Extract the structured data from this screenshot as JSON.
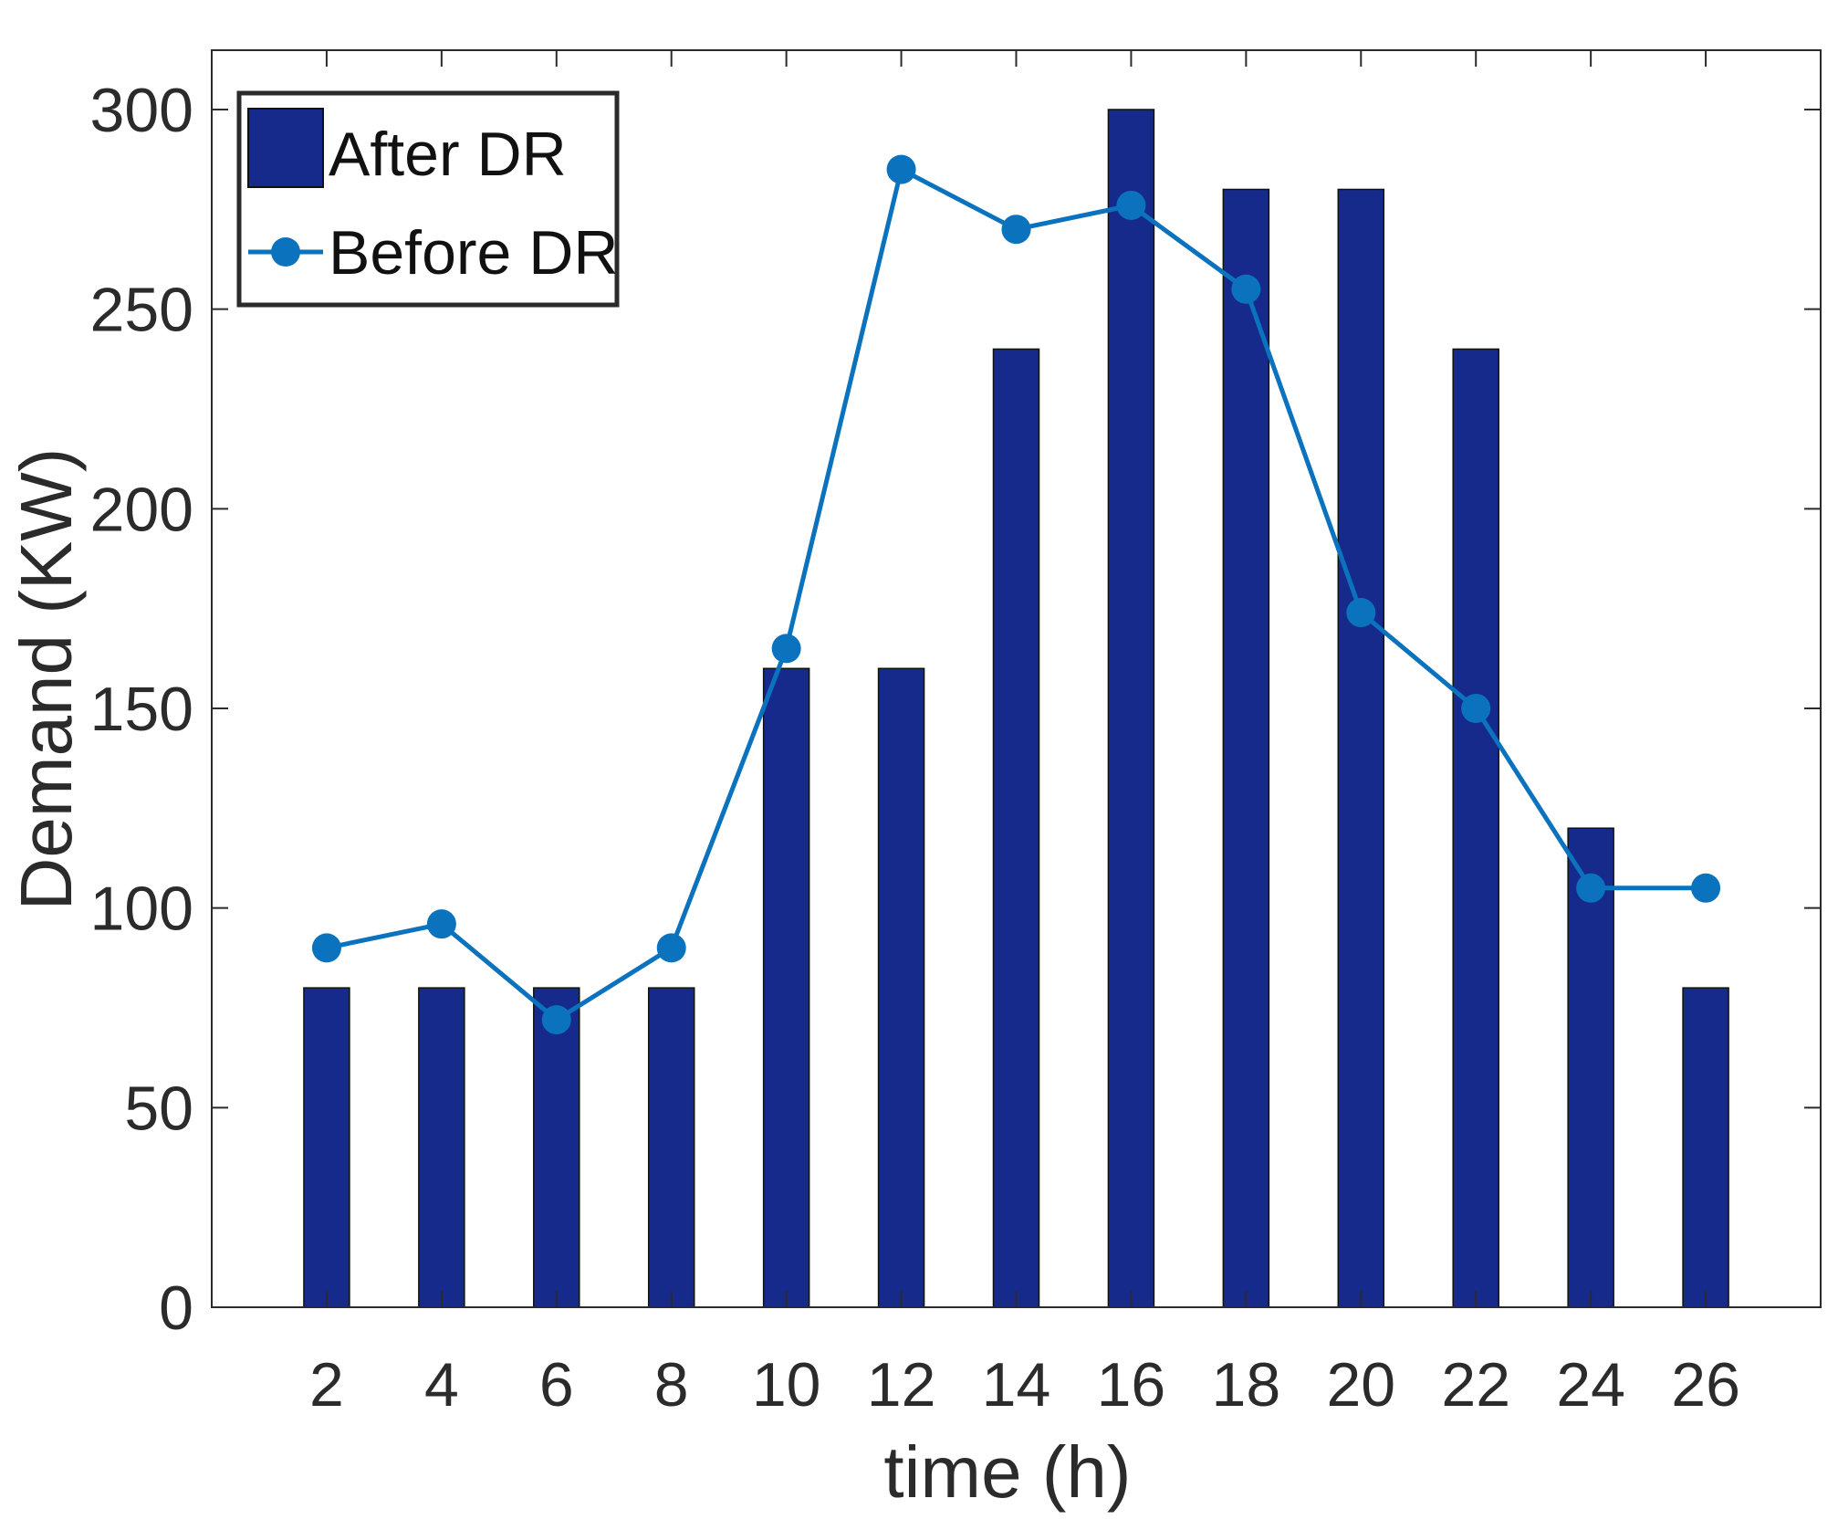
{
  "chart_data": {
    "type": "bar+line",
    "title": "",
    "xlabel": "time (h)",
    "ylabel": "Demand  (KW)",
    "x": [
      2,
      4,
      6,
      8,
      10,
      12,
      14,
      16,
      18,
      20,
      22,
      24,
      26
    ],
    "x_tick_labels": [
      "2",
      "4",
      "6",
      "8",
      "10",
      "12",
      "14",
      "16",
      "18",
      "20",
      "22",
      "24",
      "26"
    ],
    "y_ticks": [
      0,
      50,
      100,
      150,
      200,
      250,
      300
    ],
    "y_tick_labels": [
      "0",
      "50",
      "100",
      "150",
      "200",
      "250",
      "300"
    ],
    "xlim": [
      0,
      28
    ],
    "ylim": [
      0,
      300
    ],
    "legend_position": "top-left",
    "series": [
      {
        "name": "After DR",
        "type": "bar",
        "color": "#162a8c",
        "values": [
          80,
          80,
          80,
          80,
          160,
          160,
          240,
          300,
          280,
          280,
          240,
          120,
          80
        ]
      },
      {
        "name": "Before DR",
        "type": "line",
        "marker": "circle",
        "color": "#0b72bd",
        "values": [
          90,
          96,
          72,
          90,
          165,
          285,
          270,
          276,
          255,
          174,
          150,
          105,
          105
        ]
      }
    ]
  }
}
